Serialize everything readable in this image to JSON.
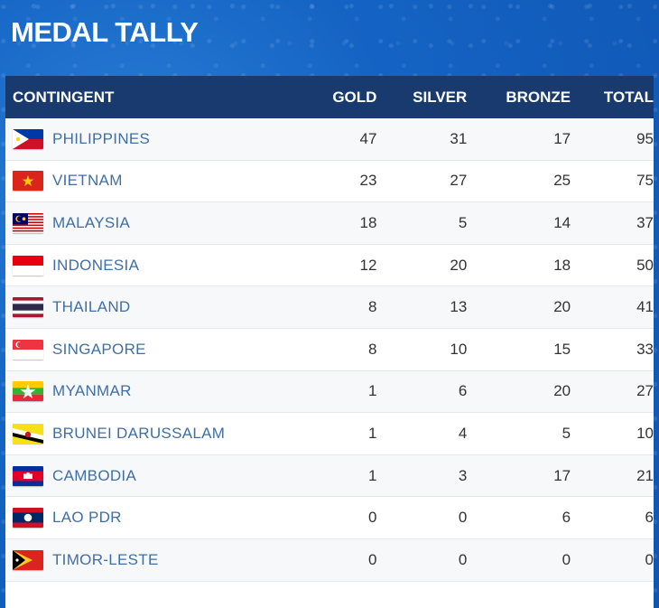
{
  "title": "MEDAL TALLY",
  "headers": {
    "contingent": "CONTINGENT",
    "gold": "GOLD",
    "silver": "SILVER",
    "bronze": "BRONZE",
    "total": "TOTAL"
  },
  "rows": [
    {
      "country": "PHILIPPINES",
      "flag": "philippines-flag-icon",
      "gold": "47",
      "silver": "31",
      "bronze": "17",
      "total": "95"
    },
    {
      "country": "VIETNAM",
      "flag": "vietnam-flag-icon",
      "gold": "23",
      "silver": "27",
      "bronze": "25",
      "total": "75"
    },
    {
      "country": "MALAYSIA",
      "flag": "malaysia-flag-icon",
      "gold": "18",
      "silver": "5",
      "bronze": "14",
      "total": "37"
    },
    {
      "country": "INDONESIA",
      "flag": "indonesia-flag-icon",
      "gold": "12",
      "silver": "20",
      "bronze": "18",
      "total": "50"
    },
    {
      "country": "THAILAND",
      "flag": "thailand-flag-icon",
      "gold": "8",
      "silver": "13",
      "bronze": "20",
      "total": "41"
    },
    {
      "country": "SINGAPORE",
      "flag": "singapore-flag-icon",
      "gold": "8",
      "silver": "10",
      "bronze": "15",
      "total": "33"
    },
    {
      "country": "MYANMAR",
      "flag": "myanmar-flag-icon",
      "gold": "1",
      "silver": "6",
      "bronze": "20",
      "total": "27"
    },
    {
      "country": "BRUNEI DARUSSALAM",
      "flag": "brunei-flag-icon",
      "gold": "1",
      "silver": "4",
      "bronze": "5",
      "total": "10"
    },
    {
      "country": "CAMBODIA",
      "flag": "cambodia-flag-icon",
      "gold": "1",
      "silver": "3",
      "bronze": "17",
      "total": "21"
    },
    {
      "country": "LAO PDR",
      "flag": "laos-flag-icon",
      "gold": "0",
      "silver": "0",
      "bronze": "6",
      "total": "6"
    },
    {
      "country": "TIMOR-LESTE",
      "flag": "timor-leste-flag-icon",
      "gold": "0",
      "silver": "0",
      "bronze": "0",
      "total": "0"
    }
  ],
  "colors": {
    "header_bg": "#183a6f",
    "country_text": "#3f6fa6",
    "page_bg": "#1463c4"
  }
}
